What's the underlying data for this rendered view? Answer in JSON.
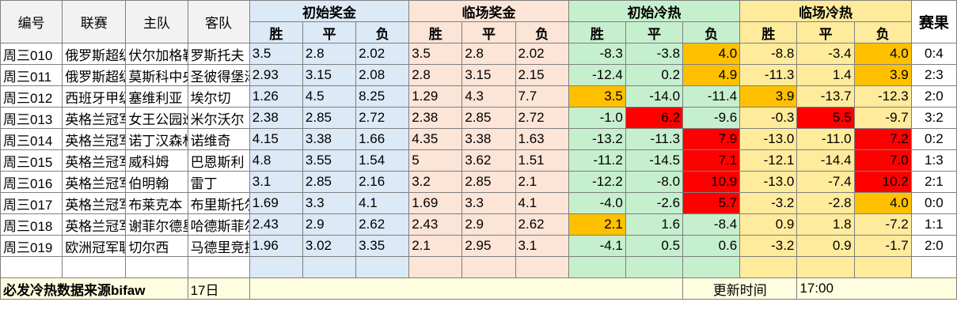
{
  "headers": {
    "id": "编号",
    "league": "联赛",
    "home": "主队",
    "away": "客队",
    "initial_odds": "初始奖金",
    "closing_odds": "临场奖金",
    "initial_heat": "初始冷热",
    "closing_heat": "临场冷热",
    "result": "赛果",
    "win": "胜",
    "draw": "平",
    "lose": "负"
  },
  "colors": {
    "highlight_orange": "#ffc000",
    "highlight_red": "#ff0000",
    "initial_odds_bg": "#dce9f6",
    "closing_odds_bg": "#fce4d6",
    "initial_heat_bg": "#c6efce",
    "closing_heat_bg": "#ffeb9c"
  },
  "rows": [
    {
      "id": "周三010",
      "league": "俄罗斯超级联赛",
      "home": "伏尔加格勒",
      "away": "罗斯托夫",
      "io": [
        "3.5",
        "2.8",
        "2.02"
      ],
      "co": [
        "3.5",
        "2.8",
        "2.02"
      ],
      "ih": [
        "-8.3",
        "-3.8",
        "4.0"
      ],
      "ch": [
        "-8.8",
        "-3.4",
        "4.0"
      ],
      "ihl": [
        "",
        "",
        "orange"
      ],
      "chl": [
        "",
        "",
        "orange"
      ],
      "result": "0:4"
    },
    {
      "id": "周三011",
      "league": "俄罗斯超级联赛",
      "home": "莫斯科中央陆军",
      "away": "圣彼得堡泽尼特",
      "io": [
        "2.93",
        "3.15",
        "2.08"
      ],
      "co": [
        "2.8",
        "3.15",
        "2.15"
      ],
      "ih": [
        "-12.4",
        "0.2",
        "4.9"
      ],
      "ch": [
        "-11.3",
        "1.4",
        "3.9"
      ],
      "ihl": [
        "",
        "",
        "orange"
      ],
      "chl": [
        "",
        "",
        "orange"
      ],
      "result": "2:3"
    },
    {
      "id": "周三012",
      "league": "西班牙甲级联赛",
      "home": "塞维利亚",
      "away": "埃尔切",
      "io": [
        "1.26",
        "4.5",
        "8.25"
      ],
      "co": [
        "1.29",
        "4.3",
        "7.7"
      ],
      "ih": [
        "3.5",
        "-14.0",
        "-11.4"
      ],
      "ch": [
        "3.9",
        "-13.7",
        "-12.3"
      ],
      "ihl": [
        "orange",
        "",
        ""
      ],
      "chl": [
        "orange",
        "",
        ""
      ],
      "result": "2:0"
    },
    {
      "id": "周三013",
      "league": "英格兰冠军联赛",
      "home": "女王公园巡游者",
      "away": "米尔沃尔",
      "io": [
        "2.38",
        "2.85",
        "2.72"
      ],
      "co": [
        "2.38",
        "2.85",
        "2.72"
      ],
      "ih": [
        "-1.0",
        "6.2",
        "-9.6"
      ],
      "ch": [
        "-0.3",
        "5.5",
        "-9.7"
      ],
      "ihl": [
        "",
        "red",
        ""
      ],
      "chl": [
        "",
        "red",
        ""
      ],
      "result": "3:2"
    },
    {
      "id": "周三014",
      "league": "英格兰冠军联赛",
      "home": "诺丁汉森林",
      "away": "诺维奇",
      "io": [
        "4.15",
        "3.38",
        "1.66"
      ],
      "co": [
        "4.35",
        "3.38",
        "1.63"
      ],
      "ih": [
        "-13.2",
        "-11.3",
        "7.9"
      ],
      "ch": [
        "-13.0",
        "-11.0",
        "7.2"
      ],
      "ihl": [
        "",
        "",
        "red"
      ],
      "chl": [
        "",
        "",
        "red"
      ],
      "result": "0:2"
    },
    {
      "id": "周三015",
      "league": "英格兰冠军联赛",
      "home": "威科姆",
      "away": "巴恩斯利",
      "io": [
        "4.8",
        "3.55",
        "1.54"
      ],
      "co": [
        "5",
        "3.62",
        "1.51"
      ],
      "ih": [
        "-11.2",
        "-14.5",
        "7.1"
      ],
      "ch": [
        "-12.1",
        "-14.4",
        "7.0"
      ],
      "ihl": [
        "",
        "",
        "red"
      ],
      "chl": [
        "",
        "",
        "red"
      ],
      "result": "1:3"
    },
    {
      "id": "周三016",
      "league": "英格兰冠军联赛",
      "home": "伯明翰",
      "away": "雷丁",
      "io": [
        "3.1",
        "2.85",
        "2.16"
      ],
      "co": [
        "3.2",
        "2.85",
        "2.1"
      ],
      "ih": [
        "-12.2",
        "-8.0",
        "10.9"
      ],
      "ch": [
        "-13.0",
        "-7.4",
        "10.2"
      ],
      "ihl": [
        "",
        "",
        "red"
      ],
      "chl": [
        "",
        "",
        "red"
      ],
      "result": "2:1"
    },
    {
      "id": "周三017",
      "league": "英格兰冠军联赛",
      "home": "布莱克本",
      "away": "布里斯托尔城",
      "io": [
        "1.69",
        "3.3",
        "4.1"
      ],
      "co": [
        "1.69",
        "3.3",
        "4.1"
      ],
      "ih": [
        "-4.0",
        "-2.6",
        "5.7"
      ],
      "ch": [
        "-3.2",
        "-2.8",
        "4.0"
      ],
      "ihl": [
        "",
        "",
        "red"
      ],
      "chl": [
        "",
        "",
        "orange"
      ],
      "result": "0:0"
    },
    {
      "id": "周三018",
      "league": "英格兰冠军联赛",
      "home": "谢菲尔德星期三",
      "away": "哈德斯菲尔德",
      "io": [
        "2.43",
        "2.9",
        "2.62"
      ],
      "co": [
        "2.43",
        "2.9",
        "2.62"
      ],
      "ih": [
        "2.1",
        "1.6",
        "-8.4"
      ],
      "ch": [
        "0.9",
        "1.8",
        "-7.2"
      ],
      "ihl": [
        "orange",
        "",
        ""
      ],
      "chl": [
        "",
        "",
        ""
      ],
      "result": "1:1"
    },
    {
      "id": "周三019",
      "league": "欧洲冠军联赛",
      "home": "切尔西",
      "away": "马德里竞技",
      "io": [
        "1.96",
        "3.02",
        "3.35"
      ],
      "co": [
        "2.1",
        "2.95",
        "3.1"
      ],
      "ih": [
        "-4.1",
        "0.5",
        "0.6"
      ],
      "ch": [
        "-3.2",
        "0.9",
        "-1.7"
      ],
      "ihl": [
        "",
        "",
        ""
      ],
      "chl": [
        "",
        "",
        ""
      ],
      "result": "2:0"
    }
  ],
  "footer": {
    "label": "必发冷热数据来源bifaw",
    "date": "17日",
    "update_label": "更新时间",
    "update_time": "17:00"
  }
}
